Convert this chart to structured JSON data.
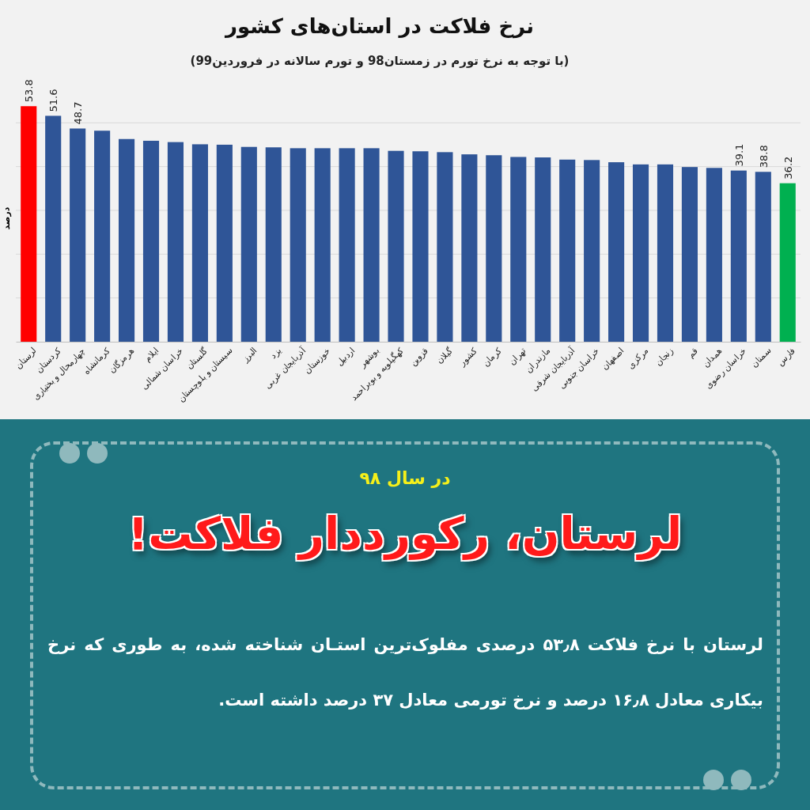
{
  "chart_data": {
    "type": "bar",
    "title": "نرخ فلاکت در استان‌های کشور",
    "subtitle": "(با توجه به نرخ تورم در زمستان98 و تورم سالانه در فروردین99)",
    "ylabel": "درصد",
    "categories": [
      "لرستان",
      "کردستان",
      "چهارمحال و بختیاری",
      "کرمانشاه",
      "هرمزگان",
      "ایلام",
      "خراسان شمالی",
      "گلستان",
      "سیستان و بلوچستان",
      "البرز",
      "یزد",
      "آذربایجان غربی",
      "خوزستان",
      "اردبیل",
      "بوشهر",
      "کهگیلویه و بویراحمد",
      "قزوین",
      "گیلان",
      "کشور",
      "کرمان",
      "تهران",
      "مازندران",
      "آذربایجان شرقی",
      "خراسان جنوبی",
      "اصفهان",
      "مرکزی",
      "زنجان",
      "قم",
      "همدان",
      "خراسان رضوی",
      "سمنان",
      "فارس"
    ],
    "values": [
      53.8,
      51.6,
      48.7,
      48.2,
      46.3,
      45.9,
      45.6,
      45.1,
      45.0,
      44.5,
      44.4,
      44.2,
      44.2,
      44.2,
      44.2,
      43.6,
      43.5,
      43.3,
      42.8,
      42.6,
      42.2,
      42.1,
      41.6,
      41.5,
      41.0,
      40.5,
      40.5,
      39.9,
      39.7,
      39.1,
      38.8,
      36.2
    ],
    "value_labels": [
      "53.8",
      "51.6",
      "48.7",
      null,
      null,
      null,
      null,
      null,
      null,
      null,
      null,
      null,
      null,
      null,
      null,
      null,
      null,
      null,
      null,
      null,
      null,
      null,
      null,
      null,
      null,
      null,
      null,
      null,
      null,
      "39.1",
      "38.8",
      "36.2"
    ],
    "colors": [
      "#ff0000",
      "#2f5597",
      "#2f5597",
      "#2f5597",
      "#2f5597",
      "#2f5597",
      "#2f5597",
      "#2f5597",
      "#2f5597",
      "#2f5597",
      "#2f5597",
      "#2f5597",
      "#2f5597",
      "#2f5597",
      "#2f5597",
      "#2f5597",
      "#2f5597",
      "#2f5597",
      "#2f5597",
      "#2f5597",
      "#2f5597",
      "#2f5597",
      "#2f5597",
      "#2f5597",
      "#2f5597",
      "#2f5597",
      "#2f5597",
      "#2f5597",
      "#2f5597",
      "#2f5597",
      "#2f5597",
      "#00b050"
    ],
    "yticks": [
      {
        "value": 10,
        "label": null
      },
      {
        "value": 20,
        "label": null
      },
      {
        "value": 30,
        "label": null
      },
      {
        "value": 40,
        "label": null
      },
      {
        "value": 50,
        "label": null
      }
    ],
    "grid": "y",
    "annotations": [
      "در سال ۹۸",
      "لرستان، رکورددار فلاکت!",
      "لرستان با نرخ فلاکت ۵۳٫۸ درصدی مفلوک‌ترین استـان شناخته شده، به طوری که نرخ بیکاری معادل ۱۶٫۸ درصد و نرخ تورمی معادل ۳۷ درصد داشته است."
    ]
  }
}
